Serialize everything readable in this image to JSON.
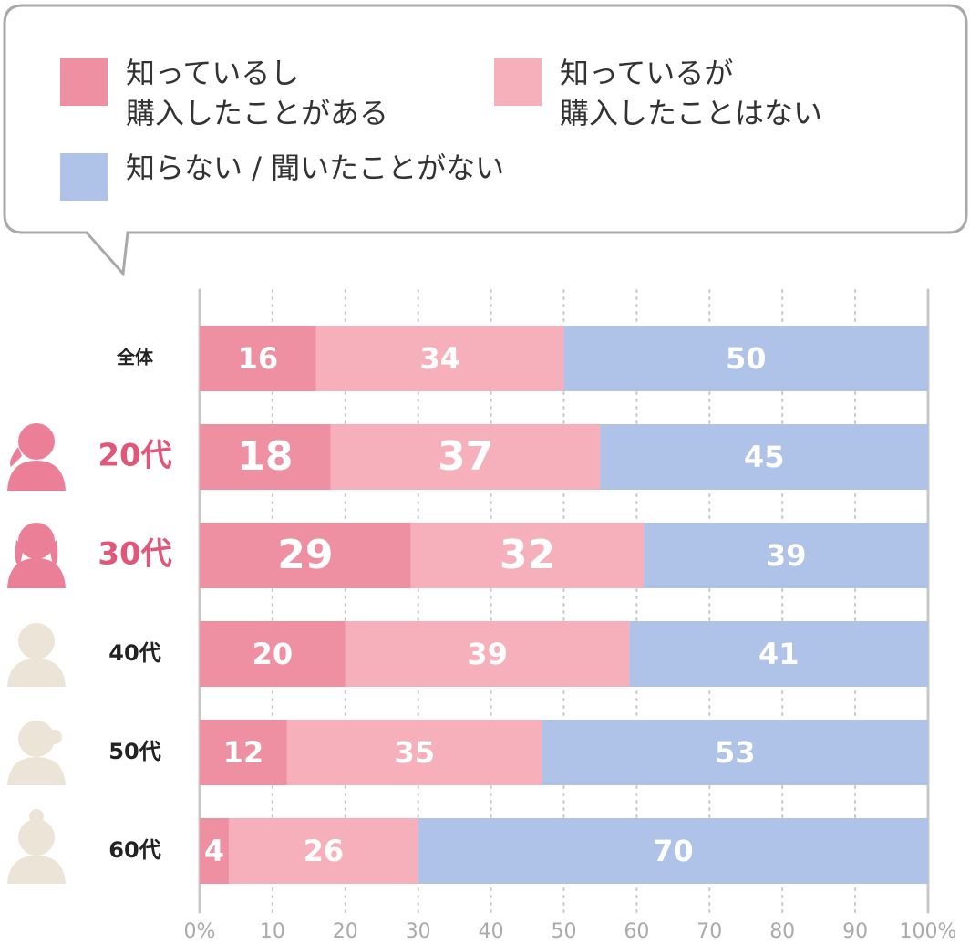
{
  "chart_data": {
    "type": "stacked-bar-horizontal",
    "categories": [
      "全体",
      "20代",
      "30代",
      "40代",
      "50代",
      "60代"
    ],
    "category_colors": [
      "#222222",
      "#e0577a",
      "#e0577a",
      "#222222",
      "#222222",
      "#222222"
    ],
    "series": [
      {
        "name": "知っているし\n購入したことがある",
        "color": "#ee90a2",
        "values": [
          16,
          18,
          29,
          20,
          12,
          4
        ]
      },
      {
        "name": "知っているが\n購入したことはない",
        "color": "#f5b0bc",
        "values": [
          34,
          37,
          32,
          39,
          35,
          26
        ]
      },
      {
        "name": "知らない / 聞いたことがない",
        "color": "#afc2e7",
        "values": [
          50,
          45,
          39,
          41,
          53,
          70
        ]
      }
    ],
    "xlim": [
      0,
      100
    ],
    "xticks": [
      {
        "value": 0,
        "label": "0%"
      },
      10,
      20,
      30,
      40,
      50,
      60,
      70,
      80,
      90,
      {
        "value": 100,
        "label": "100%"
      }
    ],
    "grid": true
  }
}
